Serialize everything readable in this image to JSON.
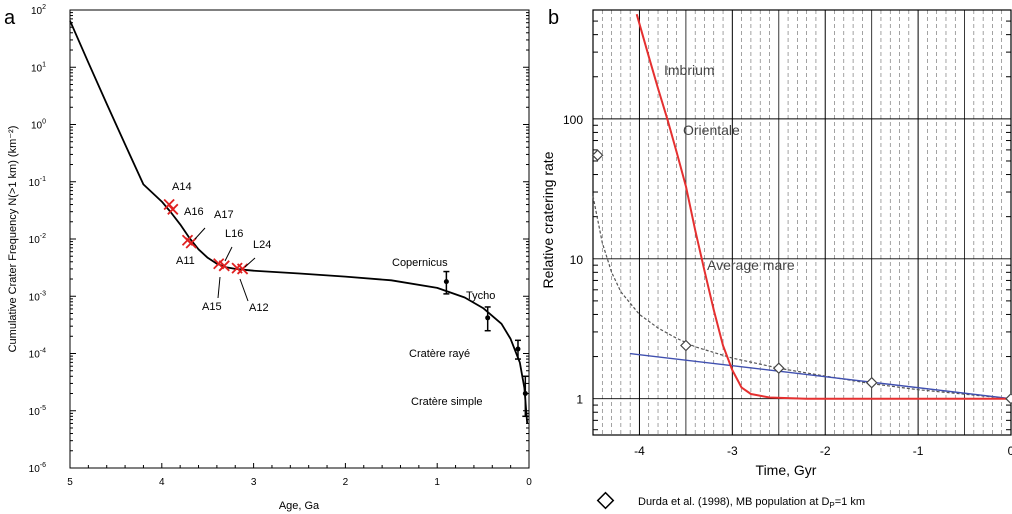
{
  "chart_data": [
    {
      "panel_label": "a",
      "type": "line",
      "xlabel": "Age, Ga",
      "ylabel": "Cumulative Crater Frequency N(>1 km) (km⁻²)",
      "xlim": [
        5,
        0
      ],
      "ylim_log10": [
        -6,
        2
      ],
      "x_ticks": [
        "5",
        "4",
        "3",
        "2",
        "1",
        "0"
      ],
      "y_ticks": [
        {
          "b": "10",
          "e": "2"
        },
        {
          "b": "10",
          "e": "1"
        },
        {
          "b": "10",
          "e": "0"
        },
        {
          "b": "10",
          "e": "-1"
        },
        {
          "b": "10",
          "e": "-2"
        },
        {
          "b": "10",
          "e": "-3"
        },
        {
          "b": "10",
          "e": "-4"
        },
        {
          "b": "10",
          "e": "-5"
        },
        {
          "b": "10",
          "e": "-6"
        }
      ],
      "curve": {
        "x": [
          5.0,
          4.8,
          4.6,
          4.4,
          4.2,
          4.0,
          3.9,
          3.8,
          3.7,
          3.6,
          3.5,
          3.4,
          3.3,
          3.2,
          3.1,
          3.0,
          2.5,
          2.0,
          1.5,
          1.0,
          0.7,
          0.5,
          0.3,
          0.2,
          0.1,
          0.05,
          0.02
        ],
        "y": [
          65,
          12,
          2.3,
          0.45,
          0.09,
          0.045,
          0.029,
          0.018,
          0.0105,
          0.0066,
          0.0047,
          0.0037,
          0.0032,
          0.003,
          0.0029,
          0.0028,
          0.0025,
          0.0022,
          0.0019,
          0.0014,
          0.00095,
          0.00062,
          0.00033,
          0.00018,
          7e-05,
          2.5e-05,
          6e-06
        ]
      },
      "apollo_points": [
        {
          "label": "A14",
          "x": 3.92,
          "y": 0.04
        },
        {
          "label": "A16",
          "x": 3.88,
          "y": 0.033
        },
        {
          "label": "A17",
          "x": 3.72,
          "y": 0.0095
        },
        {
          "label": "A11",
          "x": 3.68,
          "y": 0.0085
        },
        {
          "label": "L16",
          "x": 3.38,
          "y": 0.0037
        },
        {
          "label": "A15",
          "x": 3.32,
          "y": 0.0034
        },
        {
          "label": "L24",
          "x": 3.18,
          "y": 0.0031
        },
        {
          "label": "A12",
          "x": 3.12,
          "y": 0.003
        }
      ],
      "young_craters": [
        {
          "label": "Copernicus",
          "x": 0.9,
          "y": 0.0018,
          "lo": 0.0011,
          "hi": 0.0027
        },
        {
          "label": "Tycho",
          "x": 0.45,
          "y": 0.00042,
          "lo": 0.00025,
          "hi": 0.00065
        },
        {
          "label": "Cratère rayé",
          "x": 0.12,
          "y": 0.00012,
          "lo": 8e-05,
          "hi": 0.00017
        },
        {
          "label": "Cratère simple",
          "x": 0.04,
          "y": 2e-05,
          "lo": 8e-06,
          "hi": 4e-05
        }
      ],
      "colors": {
        "curve": "#000000",
        "apollo": "#e02020"
      }
    },
    {
      "panel_label": "b",
      "type": "line",
      "xlabel": "Time, Gyr",
      "ylabel": "Relative cratering rate",
      "xlim": [
        -4.5,
        0
      ],
      "ylim": [
        0.55,
        600
      ],
      "y_scale": "log",
      "x_ticks": [
        "-4",
        "-3",
        "-2",
        "-1",
        "0"
      ],
      "y_ticks": [
        "1",
        "10",
        "100"
      ],
      "annotations": [
        "Imbrium",
        "Orientale",
        "Average mare"
      ],
      "red_curve": {
        "x": [
          -4.03,
          -3.9,
          -3.8,
          -3.7,
          -3.6,
          -3.5,
          -3.4,
          -3.3,
          -3.2,
          -3.1,
          -3.0,
          -2.9,
          -2.8,
          -2.6,
          -2.2,
          -1.5,
          -0.5,
          0
        ],
        "y": [
          560,
          280,
          165,
          100,
          58,
          33,
          16,
          8.2,
          4.3,
          2.4,
          1.6,
          1.2,
          1.08,
          1.02,
          1.0,
          1.0,
          1.0,
          1.0
        ]
      },
      "dashed_curve": {
        "x": [
          -4.5,
          -4.4,
          -4.3,
          -4.2,
          -4.0,
          -3.8,
          -3.6,
          -3.4,
          -3.0,
          -2.5,
          -2.0,
          -1.5,
          -1.0,
          0
        ],
        "y": [
          28,
          13,
          8,
          5.8,
          4.0,
          3.2,
          2.7,
          2.35,
          1.95,
          1.65,
          1.45,
          1.28,
          1.16,
          1.0
        ]
      },
      "blue_line": {
        "x": [
          -4.1,
          0
        ],
        "y": [
          2.1,
          1.0
        ]
      },
      "diamonds": {
        "x": [
          -4.45,
          -3.5,
          -2.5,
          -1.5,
          0
        ],
        "y": [
          55,
          2.4,
          1.65,
          1.3,
          1.0
        ]
      },
      "legend": "Durda et al. (1998), MB population at D",
      "legend_sub": "P",
      "legend_tail": "=1 km",
      "colors": {
        "red": "#e53030",
        "blue": "#4050b0",
        "dashed": "#555555",
        "diamond": "#777777"
      }
    }
  ]
}
